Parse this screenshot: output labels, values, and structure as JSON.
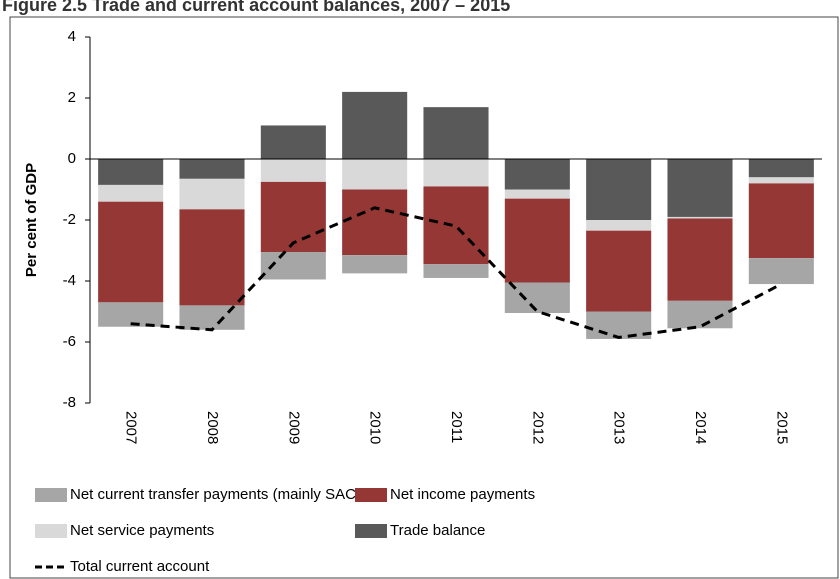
{
  "chart_data": {
    "type": "stacked-bar-line",
    "title": "Figure 2.5 Trade and current account balances, 2007 – 2015",
    "y_label": "Per cent of GDP",
    "categories": [
      "2007",
      "2008",
      "2009",
      "2010",
      "2011",
      "2012",
      "2013",
      "2014",
      "2015"
    ],
    "series": [
      {
        "name": "Net current transfer payments (mainly SACU)",
        "color": "#a6a6a6",
        "type": "bar",
        "values": [
          -0.8,
          -0.8,
          -0.9,
          -0.6,
          -0.45,
          -1.0,
          -0.9,
          -0.9,
          -0.85
        ]
      },
      {
        "name": "Net income payments",
        "color": "#953735",
        "type": "bar",
        "values": [
          -3.3,
          -3.15,
          -2.3,
          -2.15,
          -2.55,
          -2.75,
          -2.65,
          -2.7,
          -2.45
        ]
      },
      {
        "name": "Net service payments",
        "color": "#d9d9d9",
        "type": "bar",
        "values": [
          -0.55,
          -1.0,
          -0.75,
          -1.0,
          -0.9,
          -0.3,
          -0.35,
          -0.05,
          -0.2
        ]
      },
      {
        "name": "Trade balance",
        "color": "#595959",
        "type": "bar",
        "values": [
          -0.85,
          -0.65,
          1.1,
          2.2,
          1.7,
          -1.0,
          -2.0,
          -1.9,
          -0.6
        ]
      },
      {
        "name": "Total current account",
        "color": "#000000",
        "type": "line",
        "dashed": true,
        "values": [
          -5.4,
          -5.6,
          -2.75,
          -1.6,
          -2.2,
          -5.0,
          -5.85,
          -5.5,
          -4.1
        ]
      }
    ],
    "ylim": [
      -8,
      4
    ],
    "yticks": [
      -8,
      -6,
      -4,
      -2,
      0,
      2,
      4
    ]
  }
}
